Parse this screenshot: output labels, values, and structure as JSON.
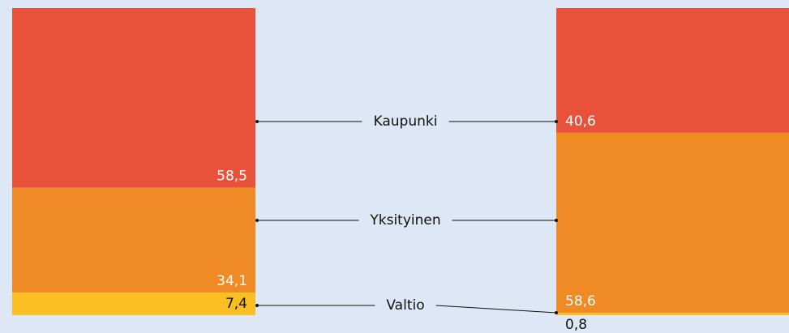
{
  "chart_data": {
    "type": "bar",
    "stacked": true,
    "categories": [
      null,
      null
    ],
    "series": [
      {
        "name": "Kaupunki",
        "color": "#e8523a",
        "values": [
          58.5,
          40.6
        ],
        "value_labels": [
          "58,5",
          "40,6"
        ]
      },
      {
        "name": "Yksityinen",
        "color": "#f08a24",
        "values": [
          34.1,
          58.6
        ],
        "value_labels": [
          "34,1",
          "58,6"
        ]
      },
      {
        "name": "Valtio",
        "color": "#fbbf24",
        "values": [
          7.4,
          0.8
        ],
        "value_labels": [
          "7,4",
          "0,8"
        ]
      }
    ]
  }
}
